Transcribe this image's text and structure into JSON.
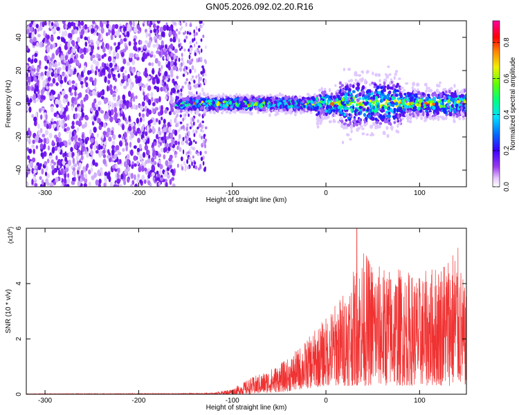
{
  "title": "GN05.2026.092.02.20.R16",
  "chart_data": [
    {
      "type": "heatmap",
      "xlabel": "Height of straight line (km)",
      "ylabel": "Frequency (Hz)",
      "xlim": [
        -320,
        150
      ],
      "ylim": [
        -50,
        50
      ],
      "x_ticks": [
        -300,
        -200,
        -100,
        0,
        100
      ],
      "y_ticks": [
        -40,
        -20,
        0,
        20,
        40
      ],
      "colorbar": {
        "label": "Normalized spectral amplitude",
        "range": [
          0,
          0.92
        ],
        "ticks": [
          0.0,
          0.2,
          0.4,
          0.6,
          0.8
        ],
        "colormap": "rainbow (white-purple-blue-cyan-green-yellow-red-magenta)"
      },
      "regions": [
        {
          "x_range": [
            -320,
            -160
          ],
          "freq_range": [
            -50,
            50
          ],
          "amplitude": "low (noise)"
        },
        {
          "x_range": [
            -160,
            -130
          ],
          "freq_range": [
            -40,
            50
          ],
          "amplitude": "low (noise, sparse)"
        },
        {
          "x_range": [
            -160,
            150
          ],
          "freq_center": 0,
          "freq_halfwidth": 5,
          "amplitude": "high (signal band)"
        }
      ],
      "grid": false
    },
    {
      "type": "line",
      "xlabel": "Height of straight line (km)",
      "ylabel": "SNR (10 * v/v)",
      "scale_label": "(x10",
      "scale_exp": "4",
      "scale_close": ")",
      "xlim": [
        -320,
        150
      ],
      "ylim": [
        0,
        6
      ],
      "x_ticks": [
        -300,
        -200,
        -100,
        0,
        100
      ],
      "y_ticks": [
        0,
        2,
        4,
        6
      ],
      "color": "#f03232",
      "envelope": {
        "x": [
          -320,
          -160,
          -120,
          -100,
          -80,
          -60,
          -40,
          -20,
          0,
          20,
          40,
          60,
          80,
          100,
          120,
          140,
          150
        ],
        "low": [
          0,
          0,
          0,
          0,
          0,
          0.05,
          0.1,
          0.2,
          0.3,
          0.3,
          0.3,
          0.3,
          0.3,
          0.3,
          0.3,
          0.3,
          0.3
        ],
        "high": [
          0.02,
          0.03,
          0.05,
          0.2,
          0.6,
          0.9,
          1.3,
          2.0,
          2.8,
          3.8,
          5.2,
          4.6,
          4.6,
          4.3,
          4.8,
          5.5,
          3.5
        ]
      },
      "peak": {
        "x": 33,
        "y": 6.0
      },
      "grid": false
    }
  ]
}
